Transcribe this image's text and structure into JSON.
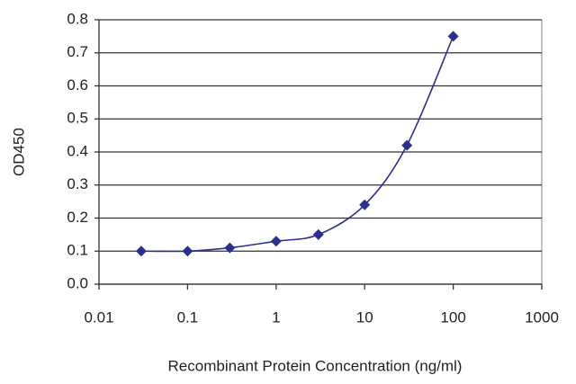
{
  "chart_data": {
    "type": "line",
    "x": [
      0.03,
      0.1,
      0.3,
      1,
      3,
      10,
      30,
      100
    ],
    "values": [
      0.1,
      0.1,
      0.11,
      0.13,
      0.15,
      0.24,
      0.42,
      0.75
    ],
    "color": "#2b2f8f",
    "x_log": true,
    "xlim": [
      0.01,
      1000
    ],
    "xticks": [
      0.01,
      0.1,
      1,
      10,
      100,
      1000
    ],
    "ylim": [
      0,
      0.8
    ],
    "yticks": [
      {
        "value": 0,
        "label": "0.0"
      },
      0.1,
      0.2,
      0.3,
      0.4,
      0.5,
      0.6,
      0.7,
      0.8
    ],
    "grid": true,
    "xlabel": "Recombinant Protein Concentration (ng/ml)",
    "ylabel": "OD450"
  }
}
